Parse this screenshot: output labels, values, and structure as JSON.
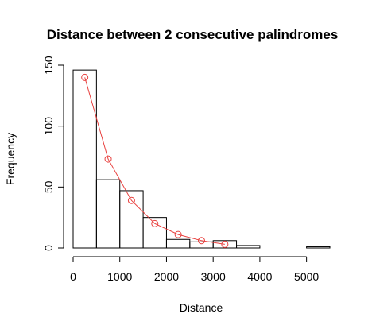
{
  "chart_data": {
    "type": "bar",
    "title": "Distance between 2 consecutive palindromes",
    "xlabel": "Distance",
    "ylabel": "Frequency",
    "xlim": [
      0,
      5500
    ],
    "ylim": [
      0,
      150
    ],
    "x_ticks": [
      0,
      1000,
      2000,
      3000,
      4000,
      5000
    ],
    "y_ticks": [
      0,
      50,
      100,
      150
    ],
    "grid": false,
    "bins": [
      {
        "start": 0,
        "end": 500,
        "count": 146
      },
      {
        "start": 500,
        "end": 1000,
        "count": 56
      },
      {
        "start": 1000,
        "end": 1500,
        "count": 47
      },
      {
        "start": 1500,
        "end": 2000,
        "count": 25
      },
      {
        "start": 2000,
        "end": 2500,
        "count": 7
      },
      {
        "start": 2500,
        "end": 3000,
        "count": 5
      },
      {
        "start": 3000,
        "end": 3500,
        "count": 6
      },
      {
        "start": 3500,
        "end": 4000,
        "count": 2
      },
      {
        "start": 4000,
        "end": 4500,
        "count": 0
      },
      {
        "start": 4500,
        "end": 5000,
        "count": 0
      },
      {
        "start": 5000,
        "end": 5500,
        "count": 1
      }
    ],
    "overlay": {
      "type": "line",
      "marker": "circle",
      "color": "#e8413f",
      "x": [
        250,
        750,
        1250,
        1750,
        2250,
        2750,
        3250
      ],
      "y": [
        140,
        73,
        39,
        20,
        11,
        6,
        3
      ]
    },
    "colors": {
      "bars_stroke": "#000000",
      "overlay": "#e8413f"
    }
  }
}
